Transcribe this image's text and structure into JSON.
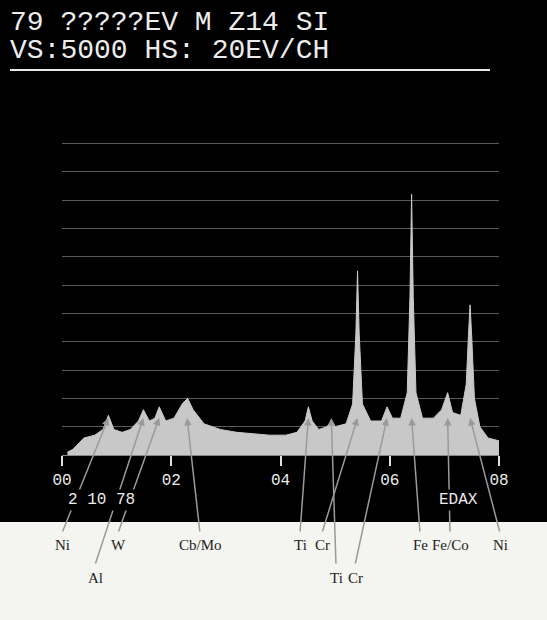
{
  "chart_data": {
    "type": "area",
    "title": "79 ?????EV M Z14 SI",
    "subtitle": "VS:5000 HS: 20EV/CH",
    "x": [
      0.1,
      0.2,
      0.4,
      0.6,
      0.75,
      0.85,
      0.95,
      1.1,
      1.25,
      1.4,
      1.49,
      1.6,
      1.7,
      1.78,
      1.9,
      2.05,
      2.2,
      2.3,
      2.4,
      2.6,
      2.9,
      3.2,
      3.5,
      3.8,
      4.1,
      4.3,
      4.45,
      4.51,
      4.58,
      4.7,
      4.85,
      4.93,
      5.0,
      5.2,
      5.32,
      5.38,
      5.41,
      5.44,
      5.5,
      5.65,
      5.85,
      5.95,
      6.05,
      6.2,
      6.32,
      6.37,
      6.4,
      6.43,
      6.48,
      6.6,
      6.8,
      6.95,
      7.06,
      7.15,
      7.3,
      7.4,
      7.44,
      7.47,
      7.5,
      7.55,
      7.65,
      7.8,
      8.0
    ],
    "values": [
      0.1,
      0.2,
      0.6,
      0.7,
      0.9,
      1.4,
      0.9,
      0.8,
      0.9,
      1.2,
      1.6,
      1.2,
      1.3,
      1.7,
      1.2,
      1.3,
      1.8,
      2.0,
      1.6,
      1.1,
      0.9,
      0.8,
      0.75,
      0.7,
      0.7,
      0.8,
      1.2,
      1.7,
      1.2,
      0.9,
      1.0,
      1.2,
      1.0,
      1.1,
      1.8,
      4.3,
      6.5,
      4.3,
      1.8,
      1.2,
      1.2,
      1.7,
      1.3,
      1.3,
      2.2,
      5.6,
      9.2,
      5.6,
      2.2,
      1.3,
      1.3,
      1.6,
      2.2,
      1.5,
      1.4,
      2.5,
      4.2,
      5.3,
      4.2,
      2.0,
      1.0,
      0.6,
      0.5
    ],
    "color": "#c8c8c8",
    "xlim": [
      0,
      8
    ],
    "xticks": [
      {
        "value": 0,
        "label": "00"
      },
      {
        "value": 2,
        "label": "02"
      },
      {
        "value": 4,
        "label": "04"
      },
      {
        "value": 6,
        "label": "06"
      },
      {
        "value": 8,
        "label": "08"
      }
    ],
    "ylim": [
      0,
      12
    ],
    "yticks": [
      0,
      1,
      2,
      3,
      4,
      5,
      6,
      7,
      8,
      9,
      10,
      11,
      12
    ],
    "grid": true,
    "tick_labels": "x",
    "annotations": [
      "2 10 78",
      "EDAX"
    ],
    "peak_labels": [
      {
        "text": "Ni",
        "x": 0.85
      },
      {
        "text": "W",
        "x": 1.78
      },
      {
        "text": "Cb/Mo",
        "x": 2.29
      },
      {
        "text": "Ti",
        "x": 4.51
      },
      {
        "text": "Cr",
        "x": 5.41
      },
      {
        "text": "Fe",
        "x": 6.4
      },
      {
        "text": "Fe/Co",
        "x": 7.06
      },
      {
        "text": "Ni",
        "x": 7.47
      }
    ],
    "peak_labels_row2": [
      {
        "text": "Al",
        "x": 1.49
      },
      {
        "text": "Ti",
        "x": 4.93
      },
      {
        "text": "Cr",
        "x": 5.95
      }
    ]
  }
}
